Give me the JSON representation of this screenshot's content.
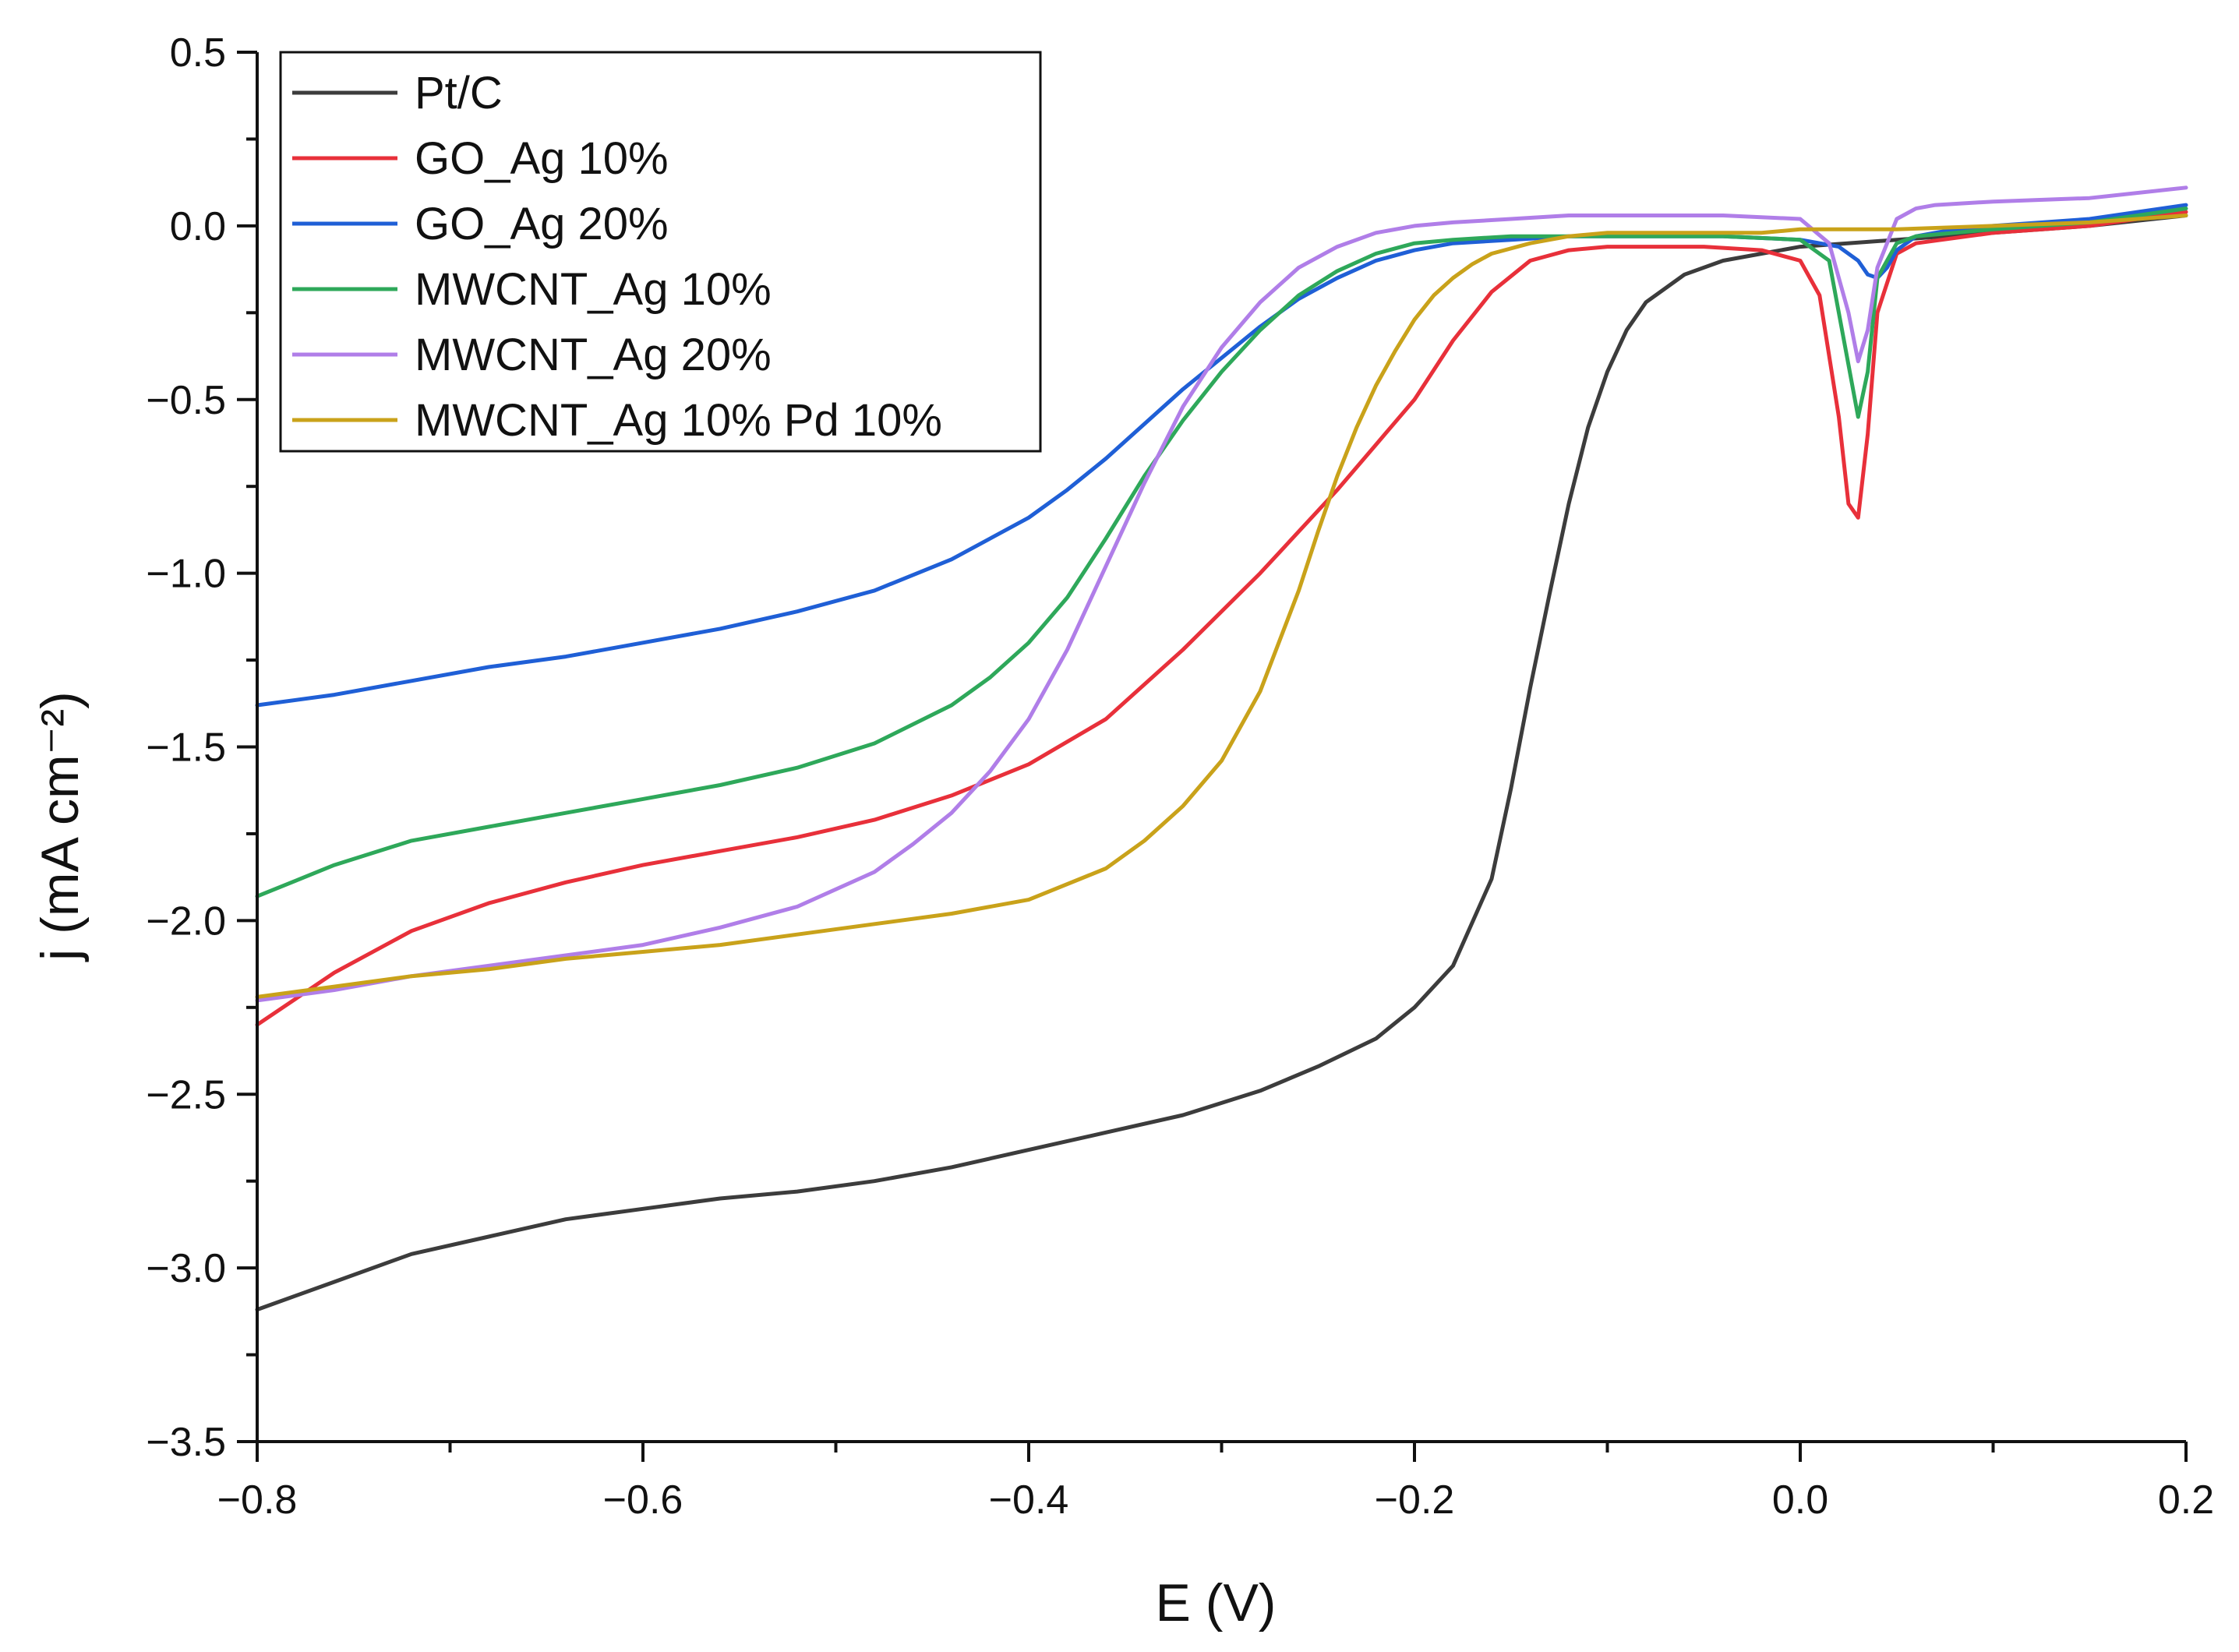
{
  "chart_data": {
    "type": "line",
    "title": "",
    "xlabel": "E (V)",
    "ylabel": "j (mA cm⁻²)",
    "xlim": [
      -0.8,
      0.2
    ],
    "ylim": [
      -3.5,
      0.5
    ],
    "x_ticks": [
      -0.8,
      -0.6,
      -0.4,
      -0.2,
      0.0,
      0.2
    ],
    "x_tick_labels": [
      "−0.8",
      "−0.6",
      "−0.4",
      "−0.2",
      "0.0",
      "0.2"
    ],
    "y_ticks": [
      0.5,
      0.0,
      -0.5,
      -1.0,
      -1.5,
      -2.0,
      -2.5,
      -3.0,
      -3.5
    ],
    "y_tick_labels": [
      "0.5",
      "0.0",
      "−0.5",
      "−1.0",
      "−1.5",
      "−2.0",
      "−2.5",
      "−3.0",
      "−3.5"
    ],
    "grid": false,
    "legend_position": "top-left",
    "series": [
      {
        "name": "Pt/C",
        "color": "#3c3c3c",
        "x": [
          -0.8,
          -0.76,
          -0.72,
          -0.68,
          -0.64,
          -0.6,
          -0.56,
          -0.52,
          -0.48,
          -0.44,
          -0.4,
          -0.36,
          -0.32,
          -0.28,
          -0.25,
          -0.22,
          -0.2,
          -0.18,
          -0.16,
          -0.15,
          -0.14,
          -0.13,
          -0.12,
          -0.11,
          -0.1,
          -0.09,
          -0.08,
          -0.06,
          -0.04,
          -0.02,
          0.0,
          0.05,
          0.1,
          0.15,
          0.2
        ],
        "y": [
          -3.12,
          -3.04,
          -2.96,
          -2.91,
          -2.86,
          -2.83,
          -2.8,
          -2.78,
          -2.75,
          -2.71,
          -2.66,
          -2.61,
          -2.56,
          -2.49,
          -2.42,
          -2.34,
          -2.25,
          -2.13,
          -1.88,
          -1.62,
          -1.33,
          -1.06,
          -0.8,
          -0.58,
          -0.42,
          -0.3,
          -0.22,
          -0.14,
          -0.1,
          -0.08,
          -0.06,
          -0.04,
          -0.02,
          0.0,
          0.03
        ]
      },
      {
        "name": "GO_Ag 10%",
        "color": "#e8303a",
        "x": [
          -0.8,
          -0.76,
          -0.72,
          -0.68,
          -0.64,
          -0.6,
          -0.56,
          -0.52,
          -0.48,
          -0.44,
          -0.4,
          -0.36,
          -0.32,
          -0.28,
          -0.26,
          -0.24,
          -0.22,
          -0.2,
          -0.18,
          -0.16,
          -0.14,
          -0.12,
          -0.1,
          -0.08,
          -0.05,
          -0.02,
          0.0,
          0.01,
          0.02,
          0.025,
          0.03,
          0.035,
          0.04,
          0.05,
          0.06,
          0.1,
          0.15,
          0.2
        ],
        "y": [
          -2.3,
          -2.15,
          -2.03,
          -1.95,
          -1.89,
          -1.84,
          -1.8,
          -1.76,
          -1.71,
          -1.64,
          -1.55,
          -1.42,
          -1.22,
          -1.0,
          -0.88,
          -0.76,
          -0.63,
          -0.5,
          -0.33,
          -0.19,
          -0.1,
          -0.07,
          -0.06,
          -0.06,
          -0.06,
          -0.07,
          -0.1,
          -0.2,
          -0.55,
          -0.8,
          -0.84,
          -0.6,
          -0.25,
          -0.08,
          -0.05,
          -0.02,
          0.0,
          0.04
        ]
      },
      {
        "name": "GO_Ag 20%",
        "color": "#1f5fd6",
        "x": [
          -0.8,
          -0.76,
          -0.72,
          -0.68,
          -0.64,
          -0.6,
          -0.56,
          -0.52,
          -0.48,
          -0.44,
          -0.4,
          -0.38,
          -0.36,
          -0.34,
          -0.32,
          -0.3,
          -0.28,
          -0.26,
          -0.24,
          -0.22,
          -0.2,
          -0.18,
          -0.15,
          -0.12,
          -0.08,
          -0.04,
          0.0,
          0.02,
          0.03,
          0.035,
          0.04,
          0.045,
          0.05,
          0.06,
          0.08,
          0.1,
          0.15,
          0.2
        ],
        "y": [
          -1.38,
          -1.35,
          -1.31,
          -1.27,
          -1.24,
          -1.2,
          -1.16,
          -1.11,
          -1.05,
          -0.96,
          -0.84,
          -0.76,
          -0.67,
          -0.57,
          -0.47,
          -0.38,
          -0.29,
          -0.21,
          -0.15,
          -0.1,
          -0.07,
          -0.05,
          -0.04,
          -0.03,
          -0.03,
          -0.03,
          -0.04,
          -0.06,
          -0.1,
          -0.14,
          -0.15,
          -0.12,
          -0.07,
          -0.03,
          -0.01,
          0.0,
          0.02,
          0.06
        ]
      },
      {
        "name": "MWCNT_Ag 10%",
        "color": "#2ea85a",
        "x": [
          -0.8,
          -0.76,
          -0.72,
          -0.68,
          -0.64,
          -0.6,
          -0.56,
          -0.52,
          -0.48,
          -0.44,
          -0.42,
          -0.4,
          -0.38,
          -0.36,
          -0.34,
          -0.32,
          -0.3,
          -0.28,
          -0.26,
          -0.24,
          -0.22,
          -0.2,
          -0.18,
          -0.15,
          -0.12,
          -0.08,
          -0.04,
          0.0,
          0.015,
          0.025,
          0.03,
          0.035,
          0.04,
          0.05,
          0.06,
          0.1,
          0.15,
          0.2
        ],
        "y": [
          -1.93,
          -1.84,
          -1.77,
          -1.73,
          -1.69,
          -1.65,
          -1.61,
          -1.56,
          -1.49,
          -1.38,
          -1.3,
          -1.2,
          -1.07,
          -0.9,
          -0.72,
          -0.56,
          -0.42,
          -0.3,
          -0.2,
          -0.13,
          -0.08,
          -0.05,
          -0.04,
          -0.03,
          -0.03,
          -0.03,
          -0.03,
          -0.04,
          -0.1,
          -0.4,
          -0.55,
          -0.42,
          -0.15,
          -0.05,
          -0.03,
          -0.01,
          0.01,
          0.05
        ]
      },
      {
        "name": "MWCNT_Ag 20%",
        "color": "#b07ee8",
        "x": [
          -0.8,
          -0.76,
          -0.72,
          -0.68,
          -0.64,
          -0.6,
          -0.56,
          -0.52,
          -0.48,
          -0.46,
          -0.44,
          -0.42,
          -0.4,
          -0.38,
          -0.36,
          -0.34,
          -0.32,
          -0.3,
          -0.28,
          -0.26,
          -0.24,
          -0.22,
          -0.2,
          -0.18,
          -0.15,
          -0.12,
          -0.08,
          -0.04,
          0.0,
          0.015,
          0.025,
          0.03,
          0.035,
          0.04,
          0.05,
          0.06,
          0.07,
          0.1,
          0.15,
          0.2
        ],
        "y": [
          -2.23,
          -2.2,
          -2.16,
          -2.13,
          -2.1,
          -2.07,
          -2.02,
          -1.96,
          -1.86,
          -1.78,
          -1.69,
          -1.57,
          -1.42,
          -1.22,
          -0.98,
          -0.74,
          -0.52,
          -0.35,
          -0.22,
          -0.12,
          -0.06,
          -0.02,
          0.0,
          0.01,
          0.02,
          0.03,
          0.03,
          0.03,
          0.02,
          -0.05,
          -0.25,
          -0.39,
          -0.3,
          -0.12,
          0.02,
          0.05,
          0.06,
          0.07,
          0.08,
          0.11
        ]
      },
      {
        "name": "MWCNT_Ag 10% Pd 10%",
        "color": "#c9a21a",
        "x": [
          -0.8,
          -0.76,
          -0.72,
          -0.68,
          -0.64,
          -0.6,
          -0.56,
          -0.52,
          -0.48,
          -0.44,
          -0.4,
          -0.36,
          -0.34,
          -0.32,
          -0.3,
          -0.28,
          -0.26,
          -0.25,
          -0.24,
          -0.23,
          -0.22,
          -0.21,
          -0.2,
          -0.19,
          -0.18,
          -0.17,
          -0.16,
          -0.14,
          -0.12,
          -0.1,
          -0.06,
          -0.02,
          0.0,
          0.05,
          0.1,
          0.15,
          0.2
        ],
        "y": [
          -2.22,
          -2.19,
          -2.16,
          -2.14,
          -2.11,
          -2.09,
          -2.07,
          -2.04,
          -2.01,
          -1.98,
          -1.94,
          -1.85,
          -1.77,
          -1.67,
          -1.54,
          -1.34,
          -1.05,
          -0.88,
          -0.72,
          -0.58,
          -0.46,
          -0.36,
          -0.27,
          -0.2,
          -0.15,
          -0.11,
          -0.08,
          -0.05,
          -0.03,
          -0.02,
          -0.02,
          -0.02,
          -0.01,
          -0.01,
          0.0,
          0.01,
          0.03
        ]
      }
    ]
  }
}
